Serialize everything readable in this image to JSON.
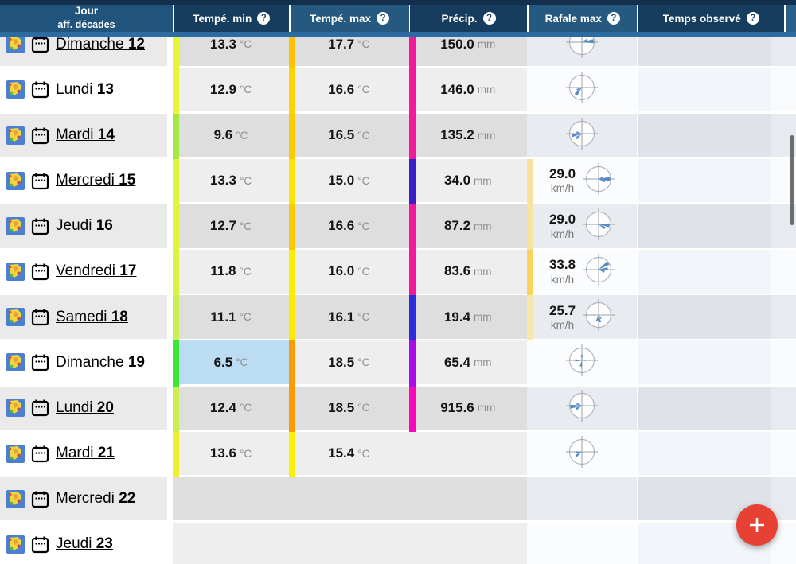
{
  "header": {
    "columns": [
      {
        "id": "jour",
        "label": "Jour",
        "sublabel": "aff. décades"
      },
      {
        "id": "tmin",
        "label": "Tempé. min",
        "help": "?"
      },
      {
        "id": "tmax",
        "label": "Tempé. max",
        "help": "?"
      },
      {
        "id": "precip",
        "label": "Précip.",
        "help": "?"
      },
      {
        "id": "rafale",
        "label": "Rafale max",
        "help": "?"
      },
      {
        "id": "obs",
        "label": "Temps observé",
        "help": "?"
      }
    ],
    "colors": {
      "top_strip": "#12304e",
      "light_cell": "#25597f",
      "dark_cell": "#173d5e",
      "jour_cell": "#21547c",
      "bottom_strip": "#2d6ba3",
      "stub_cell": "#2a5f88"
    }
  },
  "units": {
    "temp": "°C",
    "precip": "mm",
    "wind": "km/h"
  },
  "highlight_color": "#bcdcf4",
  "rows": [
    {
      "day": "Dimanche",
      "num": "12",
      "zebra": "gray",
      "tmin": "13.3",
      "tmin_bar": "#e6f43a",
      "tmax": "17.7",
      "tmax_bar": "#fcc205",
      "precip": "150.0",
      "precip_bar": "#f4189b",
      "wind": null,
      "wind_bar": null,
      "rose": [
        [
          85,
          0.95
        ],
        [
          65,
          0.45
        ]
      ]
    },
    {
      "day": "Lundi",
      "num": "13",
      "zebra": "white",
      "tmin": "12.9",
      "tmin_bar": "#e6f43a",
      "tmax": "16.6",
      "tmax_bar": "#fdd304",
      "precip": "146.0",
      "precip_bar": "#f4189b",
      "wind": null,
      "wind_bar": null,
      "rose": [
        [
          220,
          0.78
        ],
        [
          245,
          0.45
        ]
      ]
    },
    {
      "day": "Mardi",
      "num": "14",
      "zebra": "gray",
      "tmin": "9.6",
      "tmin_bar": "#a2ea43",
      "tmax": "16.5",
      "tmax_bar": "#fccb04",
      "precip": "135.2",
      "precip_bar": "#f4189b",
      "wind": null,
      "wind_bar": null,
      "rose": [
        [
          260,
          0.85
        ],
        [
          230,
          0.6
        ],
        [
          285,
          0.45
        ]
      ]
    },
    {
      "day": "Mercredi",
      "num": "15",
      "zebra": "white",
      "tmin": "13.3",
      "tmin_bar": "#e0f33f",
      "tmax": "15.0",
      "tmax_bar": "#fde304",
      "precip": "34.0",
      "precip_bar": "#3c1dc9",
      "wind": "29.0",
      "wind_bar": "#f7e49c",
      "rose": [
        [
          90,
          0.95
        ],
        [
          110,
          0.55
        ],
        [
          70,
          0.4
        ]
      ]
    },
    {
      "day": "Jeudi",
      "num": "16",
      "zebra": "gray",
      "tmin": "12.7",
      "tmin_bar": "#e3f43c",
      "tmax": "16.6",
      "tmax_bar": "#fcc905",
      "precip": "87.2",
      "precip_bar": "#f4189b",
      "wind": "29.0",
      "wind_bar": "#f7e49c",
      "rose": [
        [
          95,
          0.9
        ],
        [
          120,
          0.6
        ]
      ]
    },
    {
      "day": "Vendredi",
      "num": "17",
      "zebra": "white",
      "tmin": "11.8",
      "tmin_bar": "#ddf243",
      "tmax": "16.0",
      "tmax_bar": "#fdec04",
      "precip": "83.6",
      "precip_bar": "#f4189b",
      "wind": "33.8",
      "wind_bar": "#fad45e",
      "rose": [
        [
          55,
          0.95
        ],
        [
          85,
          0.75
        ],
        [
          110,
          0.5
        ]
      ]
    },
    {
      "day": "Samedi",
      "num": "18",
      "zebra": "gray",
      "tmin": "11.1",
      "tmin_bar": "#c9ef52",
      "tmax": "16.1",
      "tmax_bar": "#fdeb04",
      "precip": "19.4",
      "precip_bar": "#2c2ce2",
      "wind": "25.7",
      "wind_bar": "#f8e8a9",
      "rose": [
        [
          170,
          0.6
        ],
        [
          195,
          0.5
        ],
        [
          145,
          0.35
        ]
      ]
    },
    {
      "day": "Dimanche",
      "num": "19",
      "zebra": "white",
      "tmin_highlight": true,
      "tmin": "6.5",
      "tmin_bar": "#3ce53a",
      "tmax": "18.5",
      "tmax_bar": "#fc9b04",
      "precip": "65.4",
      "precip_bar": "#a90de7",
      "wind": null,
      "wind_bar": null,
      "rose": [
        [
          0,
          0.45
        ],
        [
          270,
          0.55
        ],
        [
          190,
          0.5
        ],
        [
          90,
          0.3
        ]
      ]
    },
    {
      "day": "Lundi",
      "num": "20",
      "zebra": "gray",
      "tmin": "12.4",
      "tmin_bar": "#cbef50",
      "tmax": "18.5",
      "tmax_bar": "#fc9b04",
      "precip": "915.6",
      "precip_bar": "#fb05bd",
      "wind": null,
      "wind_bar": null,
      "rose": [
        [
          265,
          0.95
        ],
        [
          240,
          0.55
        ],
        [
          290,
          0.45
        ]
      ]
    },
    {
      "day": "Mardi",
      "num": "21",
      "zebra": "white",
      "tmin": "13.6",
      "tmin_bar": "#eef02f",
      "tmax": "15.4",
      "tmax_bar": "#fdf004",
      "precip": null,
      "precip_bar": null,
      "wind": null,
      "wind_bar": null,
      "rose": [
        [
          235,
          0.6
        ],
        [
          265,
          0.45
        ]
      ]
    },
    {
      "day": "Mercredi",
      "num": "22",
      "zebra": "gray",
      "tmin": null,
      "tmin_bar": null,
      "tmax": null,
      "tmax_bar": null,
      "precip": null,
      "precip_bar": null,
      "wind": null,
      "wind_bar": null,
      "rose": null
    },
    {
      "day": "Jeudi",
      "num": "23",
      "zebra": "white",
      "tmin": null,
      "tmin_bar": null,
      "tmax": null,
      "tmax_bar": null,
      "precip": null,
      "precip_bar": null,
      "wind": null,
      "wind_bar": null,
      "rose": null
    }
  ],
  "fab": {
    "label": "+",
    "color": "#e74133"
  },
  "rose_color": "#4e86c0"
}
